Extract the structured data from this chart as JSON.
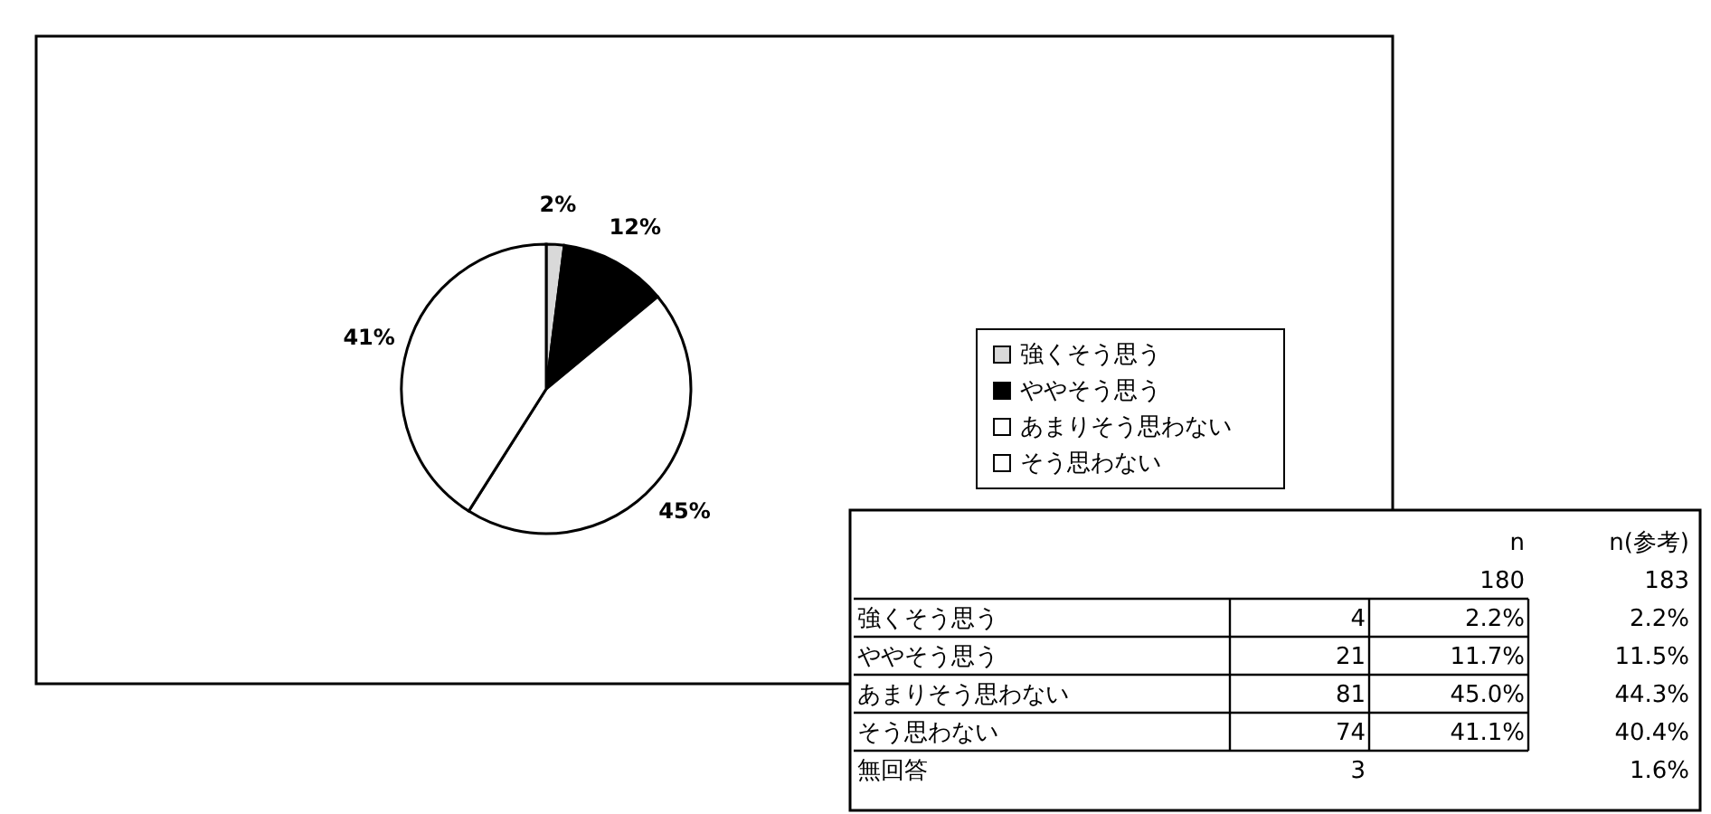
{
  "chart_data": {
    "type": "pie",
    "categories": [
      "強くそう思う",
      "ややそう思う",
      "あまりそう思わない",
      "そう思わない"
    ],
    "values": [
      2,
      12,
      45,
      41
    ],
    "colors": [
      "#d9d9d9",
      "#000000",
      "#ffffff",
      "#ffffff"
    ],
    "value_labels": [
      "2%",
      "12%",
      "45%",
      "41%"
    ],
    "legend": "right",
    "annotations": [
      "n",
      "n(参考)",
      "180",
      "183",
      "強くそう思う",
      "4",
      "2.2%",
      "2.2%",
      "ややそう思う",
      "21",
      "11.7%",
      "11.5%",
      "あまりそう思わない",
      "81",
      "45.0%",
      "44.3%",
      "そう思わない",
      "74",
      "41.1%",
      "40.4%",
      "無回答",
      "3",
      "1.6%"
    ]
  }
}
